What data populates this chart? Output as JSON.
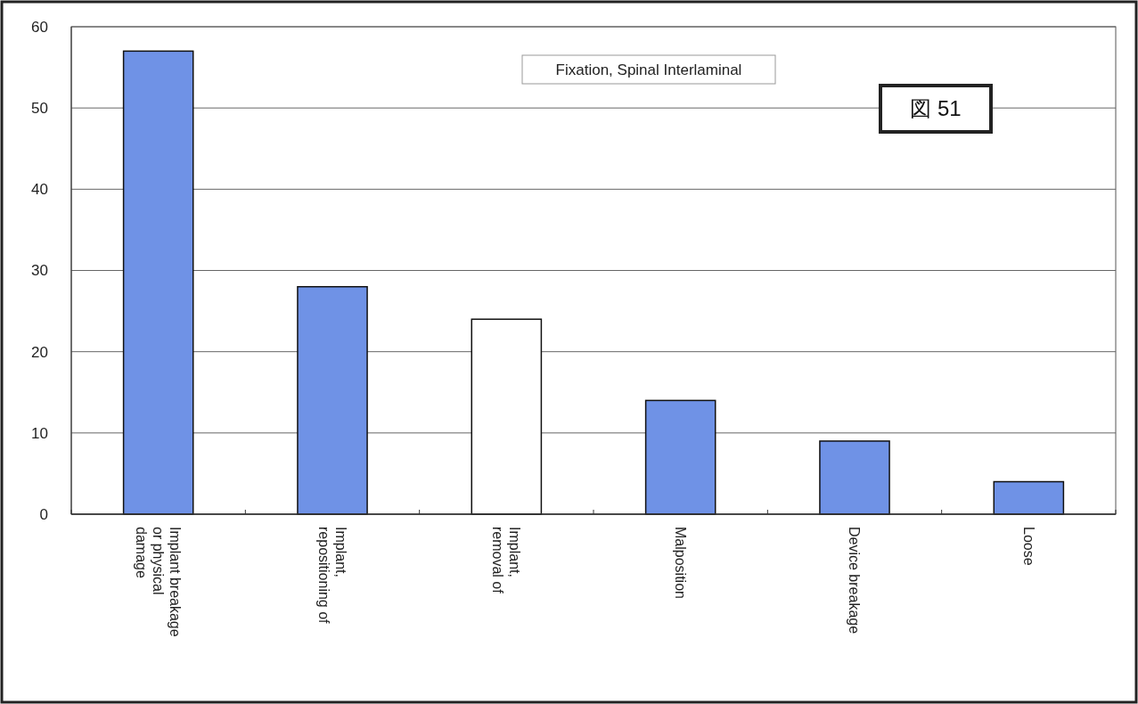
{
  "chart_data": {
    "type": "bar",
    "title": "Fixation, Spinal Interlaminal",
    "categories": [
      "Implant breakage\nor physical\ndamage",
      "Implant,\nrepositioning of",
      "Implant,\nremoval of",
      "Malposition",
      "Device breakage",
      "Loose"
    ],
    "values": [
      57,
      28,
      24,
      14,
      9,
      4
    ],
    "colors": [
      "#6f92e6",
      "#6f92e6",
      "#ffffff",
      "#6f92e6",
      "#6f92e6",
      "#6f92e6"
    ],
    "ylim": [
      0,
      60
    ],
    "yticks": [
      0,
      10,
      20,
      30,
      40,
      50,
      60
    ],
    "grid": "y",
    "annotations": [
      "図 51"
    ]
  }
}
